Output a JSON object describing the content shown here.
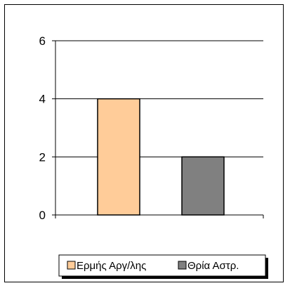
{
  "chart_data": {
    "type": "bar",
    "title": "",
    "xlabel": "",
    "ylabel": "",
    "ylim": [
      0,
      6
    ],
    "yticks": [
      0,
      2,
      4,
      6
    ],
    "grid": true,
    "legend_position": "bottom",
    "series": [
      {
        "name": "Ερμής Αργ/λης",
        "value": 4,
        "color": "#ffcc99"
      },
      {
        "name": "Θρία Αστρ.",
        "value": 2,
        "color": "#808080"
      }
    ]
  }
}
